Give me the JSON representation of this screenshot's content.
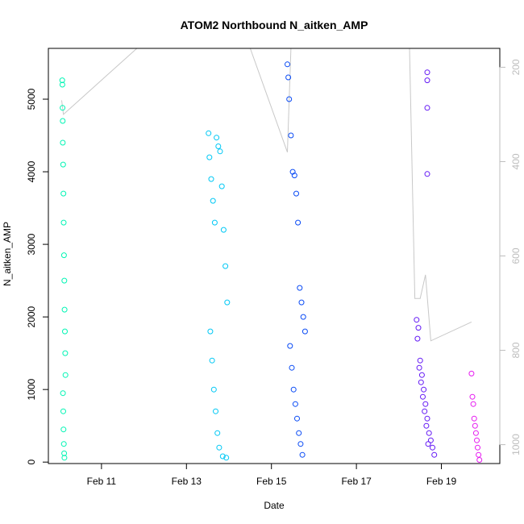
{
  "chart_data": {
    "type": "scatter",
    "title": "ATOM2 Northbound N_aitken_AMP",
    "xlabel": "Date",
    "ylabel": "N_aitken_AMP",
    "x_unit": "date",
    "xlim": [
      "2018-02-09T18:00",
      "2018-02-20T09:00"
    ],
    "ylim": [
      -20,
      5700
    ],
    "x_ticks": [
      {
        "value": "2018-02-11",
        "label": "Feb 11"
      },
      {
        "value": "2018-02-13",
        "label": "Feb 13"
      },
      {
        "value": "2018-02-15",
        "label": "Feb 15"
      },
      {
        "value": "2018-02-17",
        "label": "Feb 17"
      },
      {
        "value": "2018-02-19",
        "label": "Feb 19"
      }
    ],
    "y_ticks": [
      0,
      1000,
      2000,
      3000,
      4000,
      5000
    ],
    "right_axis": {
      "ylim": [
        1040,
        160
      ],
      "ticks": [
        200,
        400,
        600,
        800,
        1000
      ],
      "color": "#bdbdbd"
    },
    "grid": false,
    "legend": "none",
    "series": [
      {
        "color": "#00f5b4",
        "x": [
          "2018-02-10T01:50",
          "2018-02-10T01:55",
          "2018-02-10T02:00",
          "2018-02-10T02:05",
          "2018-02-10T02:10",
          "2018-02-10T02:20",
          "2018-02-10T02:30",
          "2018-02-10T02:40",
          "2018-02-10T02:50",
          "2018-02-10T03:00",
          "2018-02-10T03:10",
          "2018-02-10T03:20",
          "2018-02-10T03:30",
          "2018-02-10T03:40",
          "2018-02-10T02:15",
          "2018-02-10T02:25",
          "2018-02-10T02:35",
          "2018-02-10T02:45",
          "2018-02-10T02:55",
          "2018-02-10T03:05"
        ],
        "y": [
          5260,
          5200,
          4880,
          4700,
          4400,
          4100,
          3700,
          3300,
          2850,
          2500,
          2100,
          1800,
          1500,
          1200,
          950,
          700,
          450,
          250,
          120,
          60
        ]
      },
      {
        "color": "#00c8f5",
        "x": [
          "2018-02-13T12:30",
          "2018-02-13T13:00",
          "2018-02-13T14:00",
          "2018-02-13T15:00",
          "2018-02-13T16:00",
          "2018-02-13T17:00",
          "2018-02-13T18:00",
          "2018-02-13T19:00",
          "2018-02-13T20:00",
          "2018-02-13T21:00",
          "2018-02-13T22:00",
          "2018-02-13T23:00",
          "2018-02-13T13:30",
          "2018-02-13T14:30",
          "2018-02-13T15:30",
          "2018-02-13T16:30",
          "2018-02-13T17:30",
          "2018-02-13T18:30",
          "2018-02-13T20:30",
          "2018-02-13T22:30"
        ],
        "y": [
          4530,
          4200,
          3900,
          3600,
          3300,
          4470,
          4350,
          4280,
          3800,
          3200,
          2700,
          2200,
          1800,
          1400,
          1000,
          700,
          400,
          200,
          80,
          60
        ]
      },
      {
        "color": "#0a4bf5",
        "x": [
          "2018-02-15T09:00",
          "2018-02-15T09:30",
          "2018-02-15T10:00",
          "2018-02-15T11:00",
          "2018-02-15T12:00",
          "2018-02-15T13:00",
          "2018-02-15T14:00",
          "2018-02-15T15:00",
          "2018-02-15T16:00",
          "2018-02-15T17:00",
          "2018-02-15T18:00",
          "2018-02-15T19:00",
          "2018-02-15T10:30",
          "2018-02-15T11:30",
          "2018-02-15T12:30",
          "2018-02-15T13:30",
          "2018-02-15T14:30",
          "2018-02-15T15:30",
          "2018-02-15T16:30",
          "2018-02-15T17:30"
        ],
        "y": [
          5480,
          5300,
          5000,
          4500,
          4000,
          3950,
          3700,
          3300,
          2400,
          2200,
          2000,
          1800,
          1600,
          1300,
          1000,
          800,
          600,
          400,
          250,
          100
        ]
      },
      {
        "color": "#6419f5",
        "x": [
          "2018-02-18T10:00",
          "2018-02-18T11:00",
          "2018-02-18T12:00",
          "2018-02-18T13:00",
          "2018-02-18T14:00",
          "2018-02-18T15:00",
          "2018-02-18T16:00",
          "2018-02-18T17:00",
          "2018-02-18T18:00",
          "2018-02-18T19:00",
          "2018-02-18T20:00",
          "2018-02-18T10:30",
          "2018-02-18T11:30",
          "2018-02-18T12:30",
          "2018-02-18T13:30",
          "2018-02-18T14:30",
          "2018-02-18T15:30",
          "2018-02-18T16:30",
          "2018-02-18T16:00",
          "2018-02-18T16:00",
          "2018-02-18T16:00",
          "2018-02-18T16:00"
        ],
        "y": [
          1960,
          1850,
          1400,
          1200,
          1000,
          800,
          600,
          400,
          300,
          200,
          100,
          1700,
          1300,
          1100,
          900,
          700,
          500,
          250,
          5370,
          5260,
          4880,
          3970
        ]
      },
      {
        "color": "#e619f0",
        "x": [
          "2018-02-19T17:00",
          "2018-02-19T17:30",
          "2018-02-19T18:00",
          "2018-02-19T18:30",
          "2018-02-19T19:00",
          "2018-02-19T19:30",
          "2018-02-19T20:00",
          "2018-02-19T20:30",
          "2018-02-19T21:00",
          "2018-02-19T21:30"
        ],
        "y": [
          1220,
          900,
          800,
          600,
          500,
          400,
          300,
          200,
          100,
          30
        ]
      }
    ],
    "profile_lines": [
      {
        "x": [
          "2018-02-10T01:30",
          "2018-02-10T02:30",
          "2018-02-11T20:00",
          "2018-02-13T12:00",
          "2018-02-13T14:00",
          "2018-02-13T16:00",
          "2018-02-13T18:00",
          "2018-02-13T20:00",
          "2018-02-13T22:00",
          "2018-02-14T12:00",
          "2018-02-15T09:00",
          "2018-02-15T11:00",
          "2018-02-15T13:00",
          "2018-02-15T15:00",
          "2018-02-15T17:00",
          "2018-02-18T00:00",
          "2018-02-18T06:00",
          "2018-02-18T09:00",
          "2018-02-18T12:00",
          "2018-02-18T15:00",
          "2018-02-18T18:00",
          "2018-02-19T17:00"
        ],
        "y": [
          270,
          300,
          160,
          160,
          160,
          160,
          160,
          160,
          160,
          160,
          380,
          160,
          160,
          160,
          160,
          160,
          160,
          690,
          690,
          640,
          780,
          740
        ]
      }
    ]
  }
}
